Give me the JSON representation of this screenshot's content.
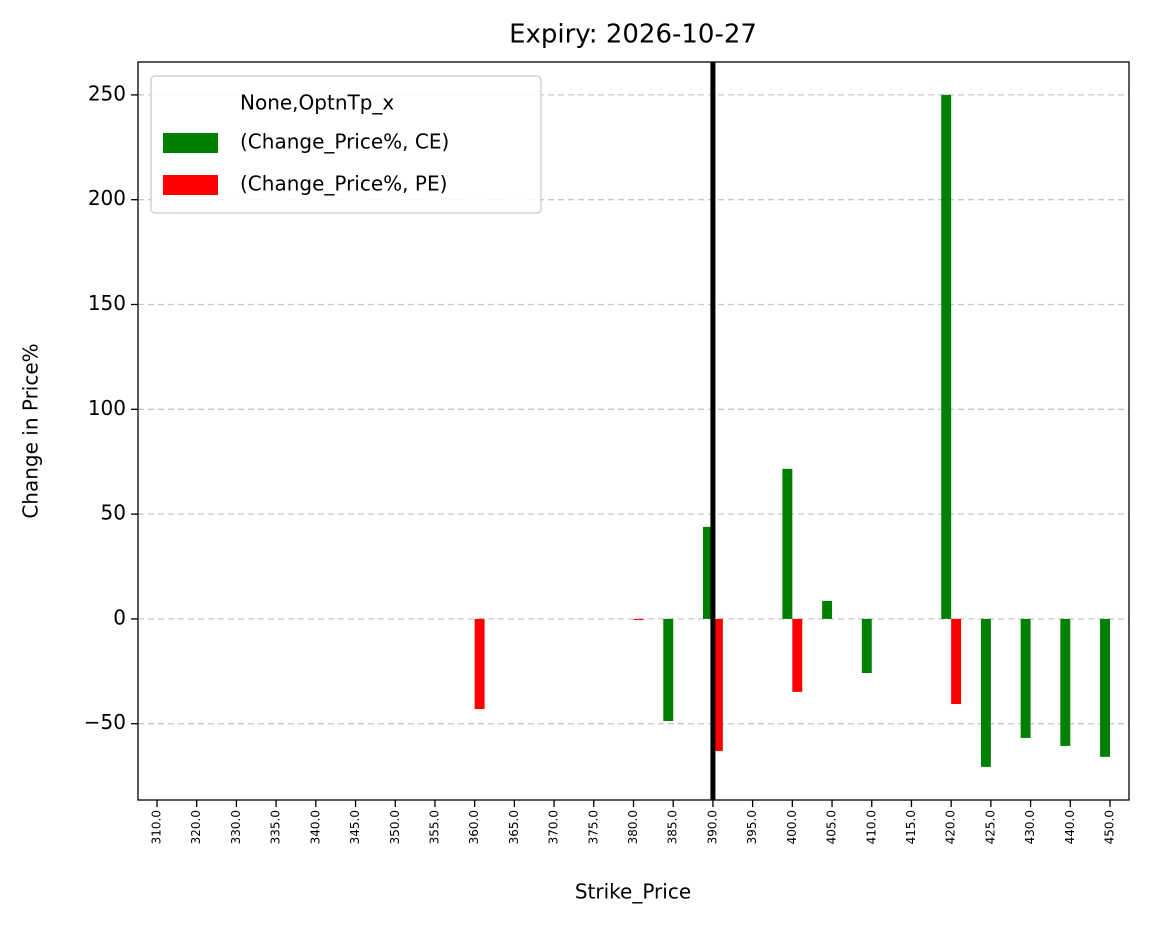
{
  "chart_data": {
    "type": "bar",
    "title": "Expiry: 2026-10-27",
    "x_label": "Strike_Price",
    "y_label": "Change in Price%",
    "categories": [
      "310.0",
      "320.0",
      "330.0",
      "335.0",
      "340.0",
      "345.0",
      "350.0",
      "355.0",
      "360.0",
      "365.0",
      "370.0",
      "375.0",
      "380.0",
      "385.0",
      "390.0",
      "395.0",
      "400.0",
      "405.0",
      "410.0",
      "415.0",
      "420.0",
      "425.0",
      "430.0",
      "440.0",
      "450.0"
    ],
    "legend_title": "None,OptnTp_x",
    "series": [
      {
        "name": "(Change_Price%, CE)",
        "color": "#008000",
        "values": [
          null,
          null,
          null,
          null,
          null,
          null,
          null,
          null,
          null,
          null,
          null,
          null,
          null,
          -48.7,
          43.9,
          null,
          71.6,
          8.6,
          -25.8,
          null,
          250,
          -70.6,
          -56.8,
          -60.6,
          -65.8
        ]
      },
      {
        "name": "(Change_Price%, PE)",
        "color": "#ff0000",
        "values": [
          null,
          null,
          null,
          null,
          null,
          null,
          null,
          null,
          -43,
          null,
          null,
          null,
          -0.5,
          null,
          -63,
          null,
          -34.8,
          null,
          null,
          null,
          -40.6,
          null,
          null,
          null,
          null
        ]
      }
    ],
    "ylim": [
      -86.4,
      265.7
    ],
    "yticks": [
      {
        "value": -50,
        "label": "−50"
      },
      0,
      50,
      100,
      150,
      200,
      250
    ],
    "grid": true,
    "legend": "upper left",
    "vline_x": 390
  }
}
